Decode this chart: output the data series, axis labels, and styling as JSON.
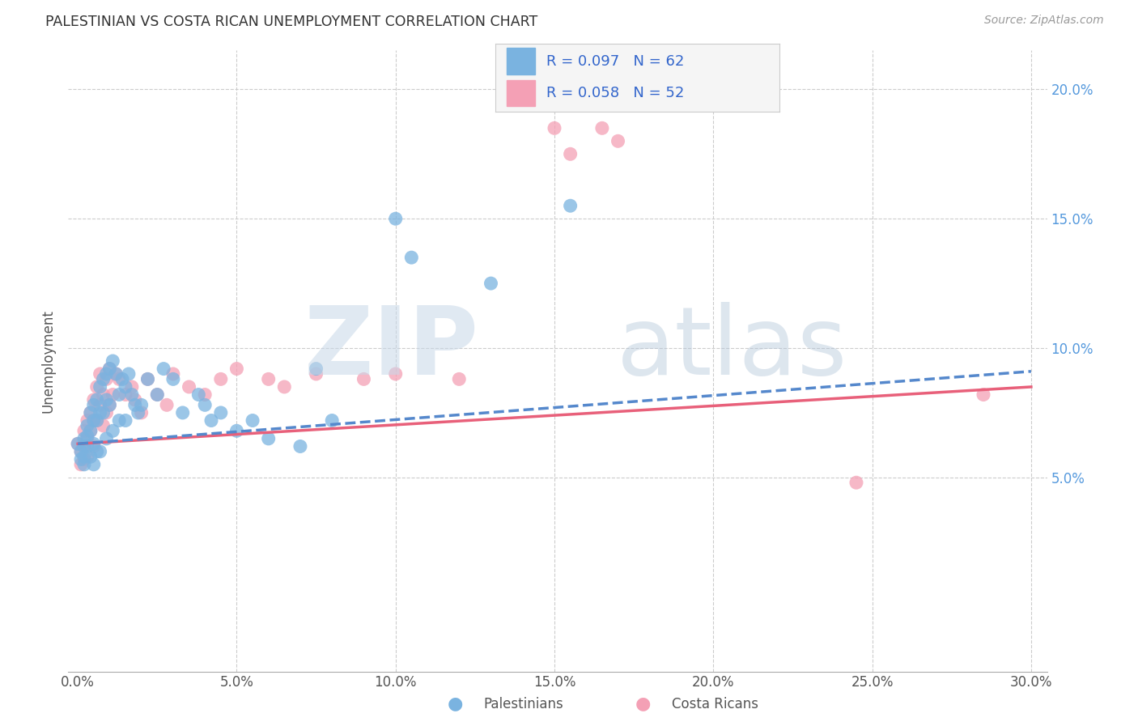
{
  "title": "PALESTINIAN VS COSTA RICAN UNEMPLOYMENT CORRELATION CHART",
  "source": "Source: ZipAtlas.com",
  "ylabel": "Unemployment",
  "xlim": [
    -0.003,
    0.305
  ],
  "ylim": [
    -0.025,
    0.215
  ],
  "x_tick_vals": [
    0.0,
    0.05,
    0.1,
    0.15,
    0.2,
    0.25,
    0.3
  ],
  "x_tick_labels": [
    "0.0%",
    "5.0%",
    "10.0%",
    "15.0%",
    "20.0%",
    "25.0%",
    "30.0%"
  ],
  "y_tick_vals": [
    0.05,
    0.1,
    0.15,
    0.2
  ],
  "y_tick_labels": [
    "5.0%",
    "10.0%",
    "15.0%",
    "20.0%"
  ],
  "right_y_tick_color": "#5599dd",
  "palestinian_color": "#7ab3e0",
  "costa_rican_color": "#f4a0b5",
  "trend_pal_color": "#5588cc",
  "trend_cr_color": "#e8607a",
  "watermark_zip_color": "#c8d8e8",
  "watermark_atlas_color": "#b0c4d8",
  "legend_text_color": "#3366cc",
  "legend_label_color": "#333333",
  "legend_bg": "#f5f5f5",
  "grid_color": "#cccccc",
  "bottom_border_color": "#aaaaaa",
  "pal_x": [
    0.0,
    0.001,
    0.001,
    0.002,
    0.002,
    0.002,
    0.002,
    0.003,
    0.003,
    0.003,
    0.004,
    0.004,
    0.004,
    0.005,
    0.005,
    0.005,
    0.005,
    0.006,
    0.006,
    0.006,
    0.007,
    0.007,
    0.007,
    0.008,
    0.008,
    0.009,
    0.009,
    0.009,
    0.01,
    0.01,
    0.011,
    0.011,
    0.012,
    0.013,
    0.013,
    0.014,
    0.015,
    0.015,
    0.016,
    0.017,
    0.018,
    0.019,
    0.02,
    0.022,
    0.025,
    0.027,
    0.03,
    0.033,
    0.038,
    0.04,
    0.042,
    0.045,
    0.05,
    0.055,
    0.06,
    0.07,
    0.075,
    0.08,
    0.1,
    0.105,
    0.13,
    0.155
  ],
  "pal_y": [
    0.063,
    0.06,
    0.057,
    0.065,
    0.062,
    0.058,
    0.055,
    0.07,
    0.066,
    0.062,
    0.075,
    0.068,
    0.058,
    0.078,
    0.072,
    0.063,
    0.055,
    0.08,
    0.072,
    0.06,
    0.085,
    0.075,
    0.06,
    0.088,
    0.075,
    0.09,
    0.08,
    0.065,
    0.092,
    0.078,
    0.095,
    0.068,
    0.09,
    0.082,
    0.072,
    0.088,
    0.085,
    0.072,
    0.09,
    0.082,
    0.078,
    0.075,
    0.078,
    0.088,
    0.082,
    0.092,
    0.088,
    0.075,
    0.082,
    0.078,
    0.072,
    0.075,
    0.068,
    0.072,
    0.065,
    0.062,
    0.092,
    0.072,
    0.15,
    0.135,
    0.125,
    0.155
  ],
  "cr_x": [
    0.0,
    0.001,
    0.001,
    0.002,
    0.002,
    0.002,
    0.003,
    0.003,
    0.003,
    0.004,
    0.004,
    0.005,
    0.005,
    0.005,
    0.006,
    0.006,
    0.007,
    0.007,
    0.008,
    0.008,
    0.009,
    0.009,
    0.01,
    0.01,
    0.011,
    0.012,
    0.013,
    0.015,
    0.017,
    0.018,
    0.02,
    0.022,
    0.025,
    0.028,
    0.03,
    0.035,
    0.04,
    0.045,
    0.05,
    0.06,
    0.065,
    0.075,
    0.09,
    0.1,
    0.12,
    0.15,
    0.155,
    0.16,
    0.165,
    0.17,
    0.245,
    0.285
  ],
  "cr_y": [
    0.063,
    0.06,
    0.055,
    0.068,
    0.062,
    0.057,
    0.072,
    0.065,
    0.058,
    0.075,
    0.068,
    0.08,
    0.072,
    0.062,
    0.085,
    0.072,
    0.09,
    0.078,
    0.082,
    0.07,
    0.088,
    0.075,
    0.092,
    0.078,
    0.082,
    0.09,
    0.088,
    0.082,
    0.085,
    0.08,
    0.075,
    0.088,
    0.082,
    0.078,
    0.09,
    0.085,
    0.082,
    0.088,
    0.092,
    0.088,
    0.085,
    0.09,
    0.088,
    0.09,
    0.088,
    0.185,
    0.175,
    0.195,
    0.185,
    0.18,
    0.048,
    0.082
  ],
  "pal_trend_x0": 0.0,
  "pal_trend_y0": 0.063,
  "pal_trend_x1": 0.3,
  "pal_trend_y1": 0.091,
  "cr_trend_x0": 0.0,
  "cr_trend_y0": 0.063,
  "cr_trend_x1": 0.3,
  "cr_trend_y1": 0.085
}
